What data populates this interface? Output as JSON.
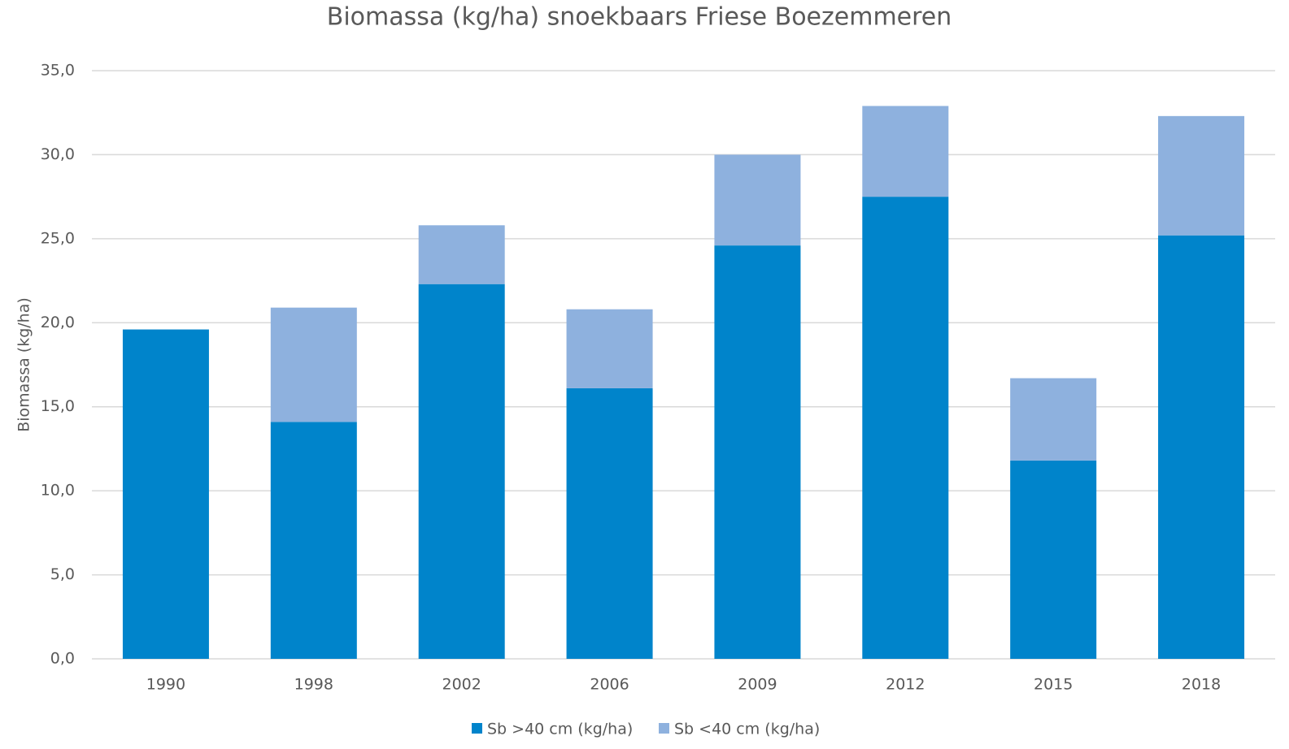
{
  "chart_data": {
    "type": "stacked_bar",
    "title": "Biomassa (kg/ha) snoekbaars Friese Boezemmeren",
    "y_label": "Biomassa (kg/ha)",
    "categories": [
      "1990",
      "1998",
      "2002",
      "2006",
      "2009",
      "2012",
      "2015",
      "2018"
    ],
    "series": [
      {
        "name": "Sb >40 cm (kg/ha)",
        "color": "#0084cb",
        "values": [
          19.6,
          14.1,
          22.3,
          16.1,
          24.6,
          27.5,
          11.8,
          25.2
        ]
      },
      {
        "name": "Sb <40 cm (kg/ha)",
        "color": "#8eb1de",
        "values": [
          0,
          6.8,
          3.5,
          4.7,
          5.4,
          5.4,
          4.9,
          7.1
        ]
      }
    ],
    "ylim": [
      0,
      35
    ],
    "yticks": [
      {
        "value": 0,
        "label": "0,0"
      },
      {
        "value": 5,
        "label": "5,0"
      },
      {
        "value": 10,
        "label": "10,0"
      },
      {
        "value": 15,
        "label": "15,0"
      },
      {
        "value": 20,
        "label": "20,0"
      },
      {
        "value": 25,
        "label": "25,0"
      },
      {
        "value": 30,
        "label": "30,0"
      },
      {
        "value": 35,
        "label": "35,0"
      }
    ],
    "grid": true,
    "legend": "bottom"
  }
}
